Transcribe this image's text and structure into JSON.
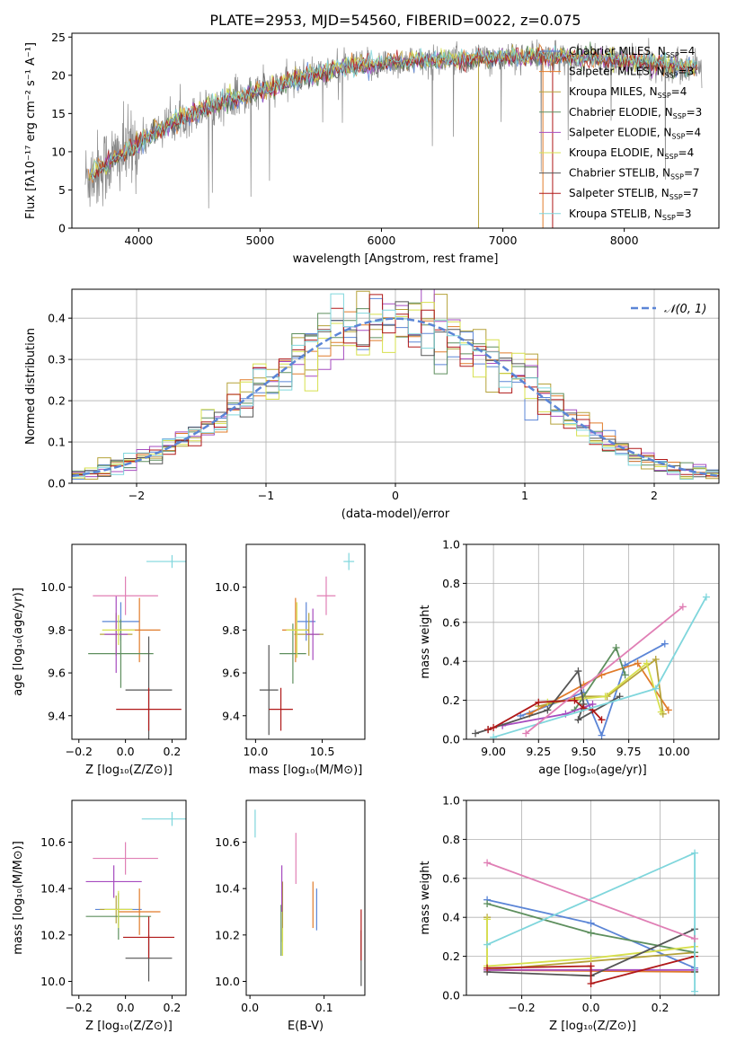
{
  "figure": {
    "title": "PLATE=2953, MJD=54560, FIBERID=0022, z=0.075"
  },
  "models": [
    {
      "name": "Chabrier MILES",
      "n": "4",
      "color": "#5b85d6"
    },
    {
      "name": "Salpeter MILES",
      "n": "3",
      "color": "#e07b2a"
    },
    {
      "name": "Kroupa MILES",
      "n": "4",
      "color": "#b5a23a"
    },
    {
      "name": "Chabrier ELODIE",
      "n": "3",
      "color": "#5e8f5e"
    },
    {
      "name": "Salpeter ELODIE",
      "n": "4",
      "color": "#a64bbf"
    },
    {
      "name": "Kroupa ELODIE",
      "n": "4",
      "color": "#d7e04e"
    },
    {
      "name": "Chabrier STELIB",
      "n": "7",
      "color": "#555555"
    },
    {
      "name": "Salpeter STELIB",
      "n": "7",
      "color": "#b01818"
    },
    {
      "name": "Kroupa STELIB",
      "n": "3",
      "color": "#7fd6dc"
    }
  ],
  "chart_data": [
    {
      "id": "spectrum",
      "type": "line",
      "xlabel": "wavelength [Angstrom, rest frame]",
      "ylabel": "Flux [fλ10⁻¹⁷ erg cm⁻² s⁻¹ A⁻¹]",
      "xlim": [
        3450,
        8780
      ],
      "ylim": [
        0,
        25.5
      ],
      "xticks": [
        4000,
        5000,
        6000,
        7000,
        8000
      ],
      "yticks": [
        0,
        5,
        10,
        15,
        20,
        25
      ],
      "legend_position": "top-right",
      "continuum": [
        [
          3560,
          6.5
        ],
        [
          3700,
          8.0
        ],
        [
          3800,
          9.0
        ],
        [
          3900,
          10.0
        ],
        [
          4000,
          11.0
        ],
        [
          4100,
          12.3
        ],
        [
          4300,
          14.0
        ],
        [
          4600,
          16.0
        ],
        [
          5000,
          18.0
        ],
        [
          5300,
          19.5
        ],
        [
          5700,
          21.0
        ],
        [
          6200,
          21.8
        ],
        [
          6800,
          22.2
        ],
        [
          7300,
          22.5
        ],
        [
          7800,
          22.2
        ],
        [
          8300,
          21.5
        ],
        [
          8600,
          20.8
        ]
      ],
      "data_color": "#888888"
    },
    {
      "id": "residuals",
      "type": "histogram",
      "xlabel": "(data-model)/error",
      "ylabel": "Normed distribution",
      "xlim": [
        -2.5,
        2.5
      ],
      "ylim": [
        0,
        0.47
      ],
      "xticks": [
        -2,
        -1,
        0,
        1,
        2
      ],
      "yticks": [
        0,
        0.1,
        0.2,
        0.3,
        0.4
      ],
      "grid": true,
      "legend": "𝒩(0, 1)",
      "legend_position": "top-right",
      "reference": {
        "mean": 0,
        "sigma": 1,
        "color": "#5b85d6"
      }
    },
    {
      "id": "age-vs-Z",
      "type": "errorbar",
      "xlabel": "Z [log₁₀(Z/Z⊙)]",
      "ylabel": "age  [log₁₀(age/yr)]",
      "xlim": [
        -0.23,
        0.26
      ],
      "ylim": [
        9.29,
        10.2
      ],
      "xticks": [
        -0.2,
        0.0,
        0.2
      ],
      "yticks": [
        9.4,
        9.6,
        9.8,
        10.0
      ],
      "points": [
        {
          "x": -0.02,
          "xerr": 0.08,
          "y": 9.84,
          "yerr": 0.09
        },
        {
          "x": 0.06,
          "xerr": 0.09,
          "y": 9.8,
          "yerr": 0.15
        },
        {
          "x": -0.04,
          "xerr": 0.07,
          "y": 9.78,
          "yerr": 0.1
        },
        {
          "x": -0.02,
          "xerr": 0.14,
          "y": 9.69,
          "yerr": 0.16
        },
        {
          "x": -0.04,
          "xerr": 0.05,
          "y": 9.78,
          "yerr": 0.18
        },
        {
          "x": -0.03,
          "xerr": 0.07,
          "y": 9.8,
          "yerr": 0.07
        },
        {
          "x": 0.1,
          "xerr": 0.1,
          "y": 9.52,
          "yerr": 0.25
        },
        {
          "x": 0.1,
          "xerr": 0.14,
          "y": 9.43,
          "yerr": 0.1
        },
        {
          "x": 0.2,
          "xerr": 0.11,
          "y": 10.12,
          "yerr": 0.03
        },
        {
          "x": 0.0,
          "xerr": 0.14,
          "y": 9.96,
          "yerr": 0.09
        }
      ]
    },
    {
      "id": "age-vs-mass",
      "type": "errorbar",
      "xlabel": "mass [log₁₀(M/M⊙)]",
      "xlim": [
        9.93,
        10.82
      ],
      "ylim": [
        9.29,
        10.2
      ],
      "xticks": [
        10.0,
        10.5
      ],
      "yticks": [
        9.4,
        9.6,
        9.8,
        10.0
      ],
      "points": [
        {
          "x": 10.38,
          "xerr": 0.07,
          "y": 9.84,
          "yerr": 0.09
        },
        {
          "x": 10.3,
          "xerr": 0.1,
          "y": 9.8,
          "yerr": 0.15
        },
        {
          "x": 10.4,
          "xerr": 0.11,
          "y": 9.78,
          "yerr": 0.1
        },
        {
          "x": 10.28,
          "xerr": 0.1,
          "y": 9.69,
          "yerr": 0.14
        },
        {
          "x": 10.43,
          "xerr": 0.05,
          "y": 9.78,
          "yerr": 0.12
        },
        {
          "x": 10.31,
          "xerr": 0.08,
          "y": 9.8,
          "yerr": 0.13
        },
        {
          "x": 10.1,
          "xerr": 0.07,
          "y": 9.52,
          "yerr": 0.21
        },
        {
          "x": 10.19,
          "xerr": 0.09,
          "y": 9.43,
          "yerr": 0.1
        },
        {
          "x": 10.7,
          "xerr": 0.04,
          "y": 10.12,
          "yerr": 0.04
        },
        {
          "x": 10.53,
          "xerr": 0.07,
          "y": 9.96,
          "yerr": 0.09
        }
      ]
    },
    {
      "id": "weight-vs-age",
      "type": "line",
      "xlabel": "age  [log₁₀(age/yr)]",
      "ylabel": "mass weight",
      "xlim": [
        8.85,
        10.25
      ],
      "ylim": [
        0,
        1.0
      ],
      "xticks": [
        9.0,
        9.25,
        9.5,
        9.75,
        10.0
      ],
      "yticks": [
        0,
        0.2,
        0.4,
        0.6,
        0.8,
        1.0
      ],
      "grid": true,
      "series": [
        {
          "points": [
            [
              9.15,
              0.12
            ],
            [
              9.5,
              0.24
            ],
            [
              9.6,
              0.02
            ],
            [
              9.73,
              0.38
            ],
            [
              9.95,
              0.49
            ]
          ]
        },
        {
          "points": [
            [
              9.2,
              0.13
            ],
            [
              9.5,
              0.28
            ],
            [
              9.6,
              0.33
            ],
            [
              9.8,
              0.39
            ],
            [
              9.97,
              0.15
            ]
          ]
        },
        {
          "points": [
            [
              9.25,
              0.17
            ],
            [
              9.5,
              0.22
            ],
            [
              9.63,
              0.22
            ],
            [
              9.9,
              0.41
            ],
            [
              9.94,
              0.13
            ]
          ]
        },
        {
          "points": [
            [
              9.45,
              0.15
            ],
            [
              9.68,
              0.47
            ],
            [
              9.73,
              0.33
            ]
          ]
        },
        {
          "points": [
            [
              9.05,
              0.07
            ],
            [
              9.4,
              0.13
            ],
            [
              9.55,
              0.18
            ]
          ]
        },
        {
          "points": [
            [
              9.3,
              0.19
            ],
            [
              9.62,
              0.22
            ],
            [
              9.85,
              0.39
            ],
            [
              9.93,
              0.14
            ]
          ]
        },
        {
          "points": [
            [
              8.9,
              0.03
            ],
            [
              8.97,
              0.05
            ],
            [
              9.3,
              0.15
            ],
            [
              9.47,
              0.35
            ],
            [
              9.5,
              0.18
            ],
            [
              9.47,
              0.1
            ],
            [
              9.7,
              0.22
            ]
          ]
        },
        {
          "points": [
            [
              8.97,
              0.05
            ],
            [
              9.0,
              0.06
            ],
            [
              9.25,
              0.19
            ],
            [
              9.45,
              0.2
            ],
            [
              9.5,
              0.16
            ],
            [
              9.55,
              0.15
            ],
            [
              9.6,
              0.1
            ]
          ]
        },
        {
          "points": [
            [
              9.0,
              0.01
            ],
            [
              9.9,
              0.26
            ],
            [
              10.18,
              0.73
            ]
          ]
        },
        {
          "points": [
            [
              9.18,
              0.03
            ],
            [
              10.05,
              0.68
            ]
          ]
        }
      ]
    },
    {
      "id": "mass-vs-Z",
      "type": "errorbar",
      "xlabel": "Z [log₁₀(Z/Z⊙)]",
      "ylabel": "mass [log₁₀(M/M⊙)]",
      "xlim": [
        -0.23,
        0.26
      ],
      "ylim": [
        9.94,
        10.78
      ],
      "xticks": [
        -0.2,
        0.0,
        0.2
      ],
      "yticks": [
        10.0,
        10.2,
        10.4,
        10.6
      ],
      "points": [
        {
          "x": -0.03,
          "xerr": 0.1,
          "y": 10.31,
          "yerr": 0.07
        },
        {
          "x": 0.06,
          "xerr": 0.09,
          "y": 10.3,
          "yerr": 0.1
        },
        {
          "x": -0.04,
          "xerr": 0.07,
          "y": 10.31,
          "yerr": 0.06
        },
        {
          "x": -0.03,
          "xerr": 0.14,
          "y": 10.28,
          "yerr": 0.1
        },
        {
          "x": -0.05,
          "xerr": 0.12,
          "y": 10.43,
          "yerr": 0.07
        },
        {
          "x": -0.03,
          "xerr": 0.06,
          "y": 10.31,
          "yerr": 0.08
        },
        {
          "x": 0.1,
          "xerr": 0.1,
          "y": 10.1,
          "yerr": 0.1
        },
        {
          "x": 0.1,
          "xerr": 0.11,
          "y": 10.19,
          "yerr": 0.09
        },
        {
          "x": 0.2,
          "xerr": 0.13,
          "y": 10.7,
          "yerr": 0.03
        },
        {
          "x": 0.0,
          "xerr": 0.14,
          "y": 10.53,
          "yerr": 0.07
        }
      ]
    },
    {
      "id": "mass-vs-EBV",
      "type": "errorbar",
      "xlabel": "E(B-V)",
      "xlim": [
        -0.005,
        0.155
      ],
      "ylim": [
        9.94,
        10.78
      ],
      "xticks": [
        0.0,
        0.1
      ],
      "yticks": [
        10.0,
        10.2,
        10.4,
        10.6
      ],
      "points": [
        {
          "x": 0.09,
          "y": 10.31,
          "yerr": 0.09
        },
        {
          "x": 0.085,
          "y": 10.33,
          "yerr": 0.1
        },
        {
          "x": 0.044,
          "y": 10.3,
          "yerr": 0.13
        },
        {
          "x": 0.042,
          "y": 10.22,
          "yerr": 0.11
        },
        {
          "x": 0.043,
          "y": 10.4,
          "yerr": 0.1
        },
        {
          "x": 0.044,
          "y": 10.17,
          "yerr": 0.06
        },
        {
          "x": 0.15,
          "y": 10.1,
          "yerr": 0.12
        },
        {
          "x": 0.15,
          "y": 10.2,
          "yerr": 0.11
        },
        {
          "x": 0.007,
          "y": 10.68,
          "yerr": 0.06
        },
        {
          "x": 0.062,
          "y": 10.53,
          "yerr": 0.11
        }
      ]
    },
    {
      "id": "weight-vs-Z",
      "type": "line",
      "xlabel": "Z [log₁₀(Z/Z⊙)]",
      "ylabel": "mass weight",
      "xlim": [
        -0.36,
        0.37
      ],
      "ylim": [
        0,
        1.0
      ],
      "xticks": [
        -0.2,
        0.0,
        0.2
      ],
      "yticks": [
        0,
        0.2,
        0.4,
        0.6,
        0.8,
        1.0
      ],
      "grid": true,
      "series": [
        {
          "points": [
            [
              -0.3,
              0.49
            ],
            [
              0.0,
              0.37
            ],
            [
              0.3,
              0.14
            ]
          ]
        },
        {
          "points": [
            [
              -0.3,
              0.13
            ],
            [
              0.3,
              0.12
            ]
          ]
        },
        {
          "points": [
            [
              -0.3,
              0.4
            ],
            [
              -0.3,
              0.13
            ],
            [
              0.3,
              0.22
            ]
          ]
        },
        {
          "points": [
            [
              -0.3,
              0.47
            ],
            [
              0.0,
              0.32
            ],
            [
              0.3,
              0.22
            ]
          ]
        },
        {
          "points": [
            [
              -0.3,
              0.13
            ],
            [
              0.0,
              0.13
            ],
            [
              0.3,
              0.13
            ]
          ]
        },
        {
          "points": [
            [
              -0.3,
              0.39
            ],
            [
              -0.3,
              0.15
            ],
            [
              0.0,
              0.19
            ],
            [
              0.3,
              0.25
            ]
          ]
        },
        {
          "points": [
            [
              -0.3,
              0.12
            ],
            [
              0.0,
              0.1
            ],
            [
              0.3,
              0.34
            ],
            [
              0.3,
              0.12
            ]
          ]
        },
        {
          "points": [
            [
              -0.3,
              0.14
            ],
            [
              0.0,
              0.15
            ],
            [
              0.0,
              0.06
            ],
            [
              0.3,
              0.2
            ]
          ]
        },
        {
          "points": [
            [
              -0.3,
              0.26
            ],
            [
              0.3,
              0.73
            ],
            [
              0.3,
              0.02
            ]
          ]
        },
        {
          "points": [
            [
              -0.3,
              0.68
            ],
            [
              0.3,
              0.29
            ]
          ]
        }
      ]
    }
  ]
}
